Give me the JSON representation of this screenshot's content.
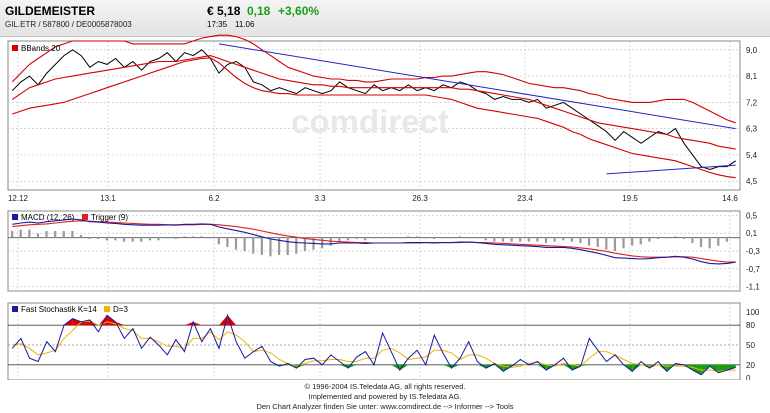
{
  "header": {
    "name": "GILDEMEISTER",
    "ident": "GIL.ETR  /  587800  /  DE0005878003",
    "price": "€ 5,18",
    "change": "0,18",
    "change_pct": "+3,60%",
    "time": "17:35",
    "date": "11.06"
  },
  "watermark": "comdirect",
  "footer": {
    "line1": "© 1996-2004 IS.Teledata AG, all rights reserved.",
    "line2": "Implemented and powered by IS.Teledata AG.",
    "line3": "Den Chart Analyzer finden Sie unter: www.comdirect.de --> Informer --> Tools"
  },
  "colors": {
    "price": "#000000",
    "bbands": "#d40000",
    "trend": "#2424c8",
    "macd": "#1a1aa0",
    "trigger": "#e02020",
    "stoch_k": "#1a1aa0",
    "stoch_d": "#f0b400",
    "overbought": "#e00000",
    "oversold": "#10a010",
    "grid": "#c8c8c8"
  },
  "chart_data": [
    {
      "type": "line",
      "legend": "BBands 20",
      "x_tick_labels": [
        "12.12",
        "13.1",
        "6.2",
        "3.3",
        "26.3",
        "23.4",
        "19.5",
        "14.6"
      ],
      "y_ticks": [
        4.5,
        5.4,
        6.3,
        7.2,
        8.1,
        9.0
      ],
      "y_tick_labels": [
        "4,5",
        "5,4",
        "6,3",
        "7,2",
        "8,1",
        "9,0"
      ],
      "ylim": [
        4.2,
        9.3
      ],
      "series": [
        {
          "role": "price",
          "values": [
            7.6,
            7.9,
            8.1,
            7.8,
            8.2,
            8.5,
            8.8,
            9.0,
            8.8,
            8.4,
            8.6,
            8.5,
            8.7,
            8.4,
            8.6,
            8.3,
            8.6,
            8.7,
            8.9,
            8.6,
            8.9,
            8.8,
            9.0,
            8.7,
            8.2,
            8.5,
            8.6,
            8.4,
            7.9,
            7.8,
            7.6,
            7.7,
            7.6,
            7.5,
            7.7,
            7.6,
            7.5,
            7.6,
            7.9,
            7.7,
            7.6,
            7.5,
            7.8,
            7.6,
            7.7,
            7.6,
            7.8,
            7.6,
            7.7,
            7.6,
            7.8,
            7.7,
            7.9,
            7.8,
            7.6,
            7.5,
            7.3,
            7.4,
            7.3,
            7.3,
            7.2,
            7.3,
            7.0,
            7.1,
            7.2,
            7.0,
            6.8,
            6.6,
            6.4,
            6.2,
            5.9,
            6.2,
            6.0,
            5.8,
            6.0,
            6.2,
            6.1,
            6.3,
            5.8,
            5.4,
            5.0,
            4.9,
            5.0,
            5.0,
            5.2
          ]
        },
        {
          "role": "upper band",
          "values": [
            7.9,
            8.2,
            8.5,
            8.7,
            8.9,
            9.1,
            9.2,
            9.3,
            9.3,
            9.3,
            9.3,
            9.3,
            9.3,
            9.3,
            9.2,
            9.2,
            9.2,
            9.2,
            9.2,
            9.2,
            9.2,
            9.3,
            9.4,
            9.45,
            9.5,
            9.5,
            9.45,
            9.35,
            9.2,
            9.0,
            8.8,
            8.6,
            8.4,
            8.3,
            8.2,
            8.1,
            8.05,
            8.0,
            8.0,
            7.95,
            7.95,
            7.9,
            7.9,
            7.95,
            8.0,
            8.0,
            8.0,
            8.0,
            8.05,
            8.05,
            8.1,
            8.1,
            8.15,
            8.2,
            8.25,
            8.25,
            8.2,
            8.15,
            8.05,
            7.95,
            7.85,
            7.8,
            7.75,
            7.7,
            7.7,
            7.65,
            7.6,
            7.5,
            7.45,
            7.35,
            7.3,
            7.25,
            7.2,
            7.2,
            7.2,
            7.25,
            7.3,
            7.3,
            7.3,
            7.2,
            7.05,
            6.9,
            6.75,
            6.6,
            6.5
          ]
        },
        {
          "role": "middle band",
          "values": [
            7.3,
            7.5,
            7.7,
            7.8,
            7.9,
            8.0,
            8.05,
            8.1,
            8.15,
            8.2,
            8.25,
            8.3,
            8.35,
            8.4,
            8.45,
            8.5,
            8.55,
            8.6,
            8.6,
            8.6,
            8.65,
            8.7,
            8.75,
            8.8,
            8.7,
            8.6,
            8.5,
            8.4,
            8.3,
            8.2,
            8.1,
            8.0,
            7.95,
            7.9,
            7.85,
            7.8,
            7.8,
            7.75,
            7.75,
            7.7,
            7.7,
            7.7,
            7.7,
            7.7,
            7.7,
            7.7,
            7.7,
            7.7,
            7.7,
            7.7,
            7.7,
            7.7,
            7.65,
            7.65,
            7.6,
            7.55,
            7.5,
            7.45,
            7.4,
            7.35,
            7.3,
            7.2,
            7.1,
            7.0,
            6.9,
            6.8,
            6.7,
            6.6,
            6.5,
            6.45,
            6.4,
            6.35,
            6.3,
            6.25,
            6.2,
            6.15,
            6.1,
            6.0,
            5.95,
            5.9,
            5.85,
            5.8,
            5.7,
            5.65,
            5.6
          ]
        },
        {
          "role": "lower band",
          "values": [
            6.8,
            6.9,
            7.0,
            7.05,
            7.1,
            7.15,
            7.2,
            7.3,
            7.4,
            7.5,
            7.6,
            7.7,
            7.8,
            7.9,
            8.0,
            8.1,
            8.2,
            8.3,
            8.4,
            8.5,
            8.6,
            8.65,
            8.7,
            8.72,
            8.55,
            8.3,
            8.05,
            7.85,
            7.7,
            7.6,
            7.55,
            7.5,
            7.5,
            7.45,
            7.45,
            7.45,
            7.45,
            7.45,
            7.45,
            7.45,
            7.45,
            7.45,
            7.45,
            7.45,
            7.45,
            7.45,
            7.45,
            7.45,
            7.45,
            7.4,
            7.35,
            7.3,
            7.2,
            7.1,
            7.0,
            6.95,
            6.9,
            6.85,
            6.8,
            6.75,
            6.7,
            6.65,
            6.55,
            6.45,
            6.35,
            6.2,
            6.1,
            5.95,
            5.85,
            5.75,
            5.65,
            5.55,
            5.45,
            5.4,
            5.35,
            5.3,
            5.25,
            5.2,
            5.1,
            5.0,
            4.9,
            4.8,
            4.72,
            4.66,
            4.62
          ]
        },
        {
          "role": "trend line",
          "points": [
            [
              24,
              9.2
            ],
            [
              84,
              6.3
            ]
          ]
        },
        {
          "role": "trend line",
          "points": [
            [
              69,
              4.75
            ],
            [
              84,
              5.05
            ]
          ]
        }
      ]
    },
    {
      "type": "line",
      "legend": [
        "MACD (12, 26)",
        "Trigger (9)"
      ],
      "y_ticks": [
        0.5,
        0.1,
        -0.3,
        -0.7,
        -1.1
      ],
      "y_tick_labels": [
        "0,5",
        "0,1",
        "-0,3",
        "-0,7",
        "-1,1"
      ],
      "ylim": [
        -1.2,
        0.6
      ],
      "series": [
        {
          "role": "macd",
          "values": [
            0.3,
            0.33,
            0.35,
            0.33,
            0.36,
            0.38,
            0.4,
            0.42,
            0.4,
            0.36,
            0.35,
            0.33,
            0.32,
            0.3,
            0.29,
            0.28,
            0.28,
            0.28,
            0.29,
            0.28,
            0.3,
            0.3,
            0.31,
            0.3,
            0.24,
            0.2,
            0.16,
            0.12,
            0.07,
            0.02,
            -0.03,
            -0.06,
            -0.09,
            -0.11,
            -0.12,
            -0.13,
            -0.14,
            -0.14,
            -0.12,
            -0.12,
            -0.12,
            -0.13,
            -0.12,
            -0.12,
            -0.12,
            -0.12,
            -0.11,
            -0.11,
            -0.11,
            -0.12,
            -0.11,
            -0.11,
            -0.1,
            -0.1,
            -0.11,
            -0.13,
            -0.15,
            -0.16,
            -0.17,
            -0.18,
            -0.19,
            -0.2,
            -0.22,
            -0.22,
            -0.22,
            -0.24,
            -0.27,
            -0.31,
            -0.35,
            -0.4,
            -0.45,
            -0.46,
            -0.47,
            -0.48,
            -0.47,
            -0.45,
            -0.44,
            -0.42,
            -0.44,
            -0.48,
            -0.54,
            -0.58,
            -0.59,
            -0.58,
            -0.55
          ]
        },
        {
          "role": "trigger",
          "values": [
            0.25,
            0.27,
            0.29,
            0.3,
            0.31,
            0.33,
            0.35,
            0.37,
            0.38,
            0.37,
            0.36,
            0.35,
            0.34,
            0.33,
            0.32,
            0.31,
            0.3,
            0.3,
            0.29,
            0.29,
            0.29,
            0.29,
            0.3,
            0.3,
            0.29,
            0.27,
            0.25,
            0.22,
            0.19,
            0.15,
            0.11,
            0.07,
            0.04,
            0.01,
            -0.02,
            -0.04,
            -0.06,
            -0.08,
            -0.09,
            -0.1,
            -0.11,
            -0.11,
            -0.12,
            -0.12,
            -0.12,
            -0.12,
            -0.12,
            -0.12,
            -0.11,
            -0.11,
            -0.11,
            -0.11,
            -0.11,
            -0.1,
            -0.11,
            -0.11,
            -0.12,
            -0.13,
            -0.14,
            -0.15,
            -0.16,
            -0.17,
            -0.18,
            -0.19,
            -0.2,
            -0.21,
            -0.23,
            -0.25,
            -0.28,
            -0.31,
            -0.35,
            -0.38,
            -0.41,
            -0.43,
            -0.44,
            -0.44,
            -0.44,
            -0.43,
            -0.43,
            -0.44,
            -0.47,
            -0.5,
            -0.53,
            -0.55,
            -0.55
          ]
        }
      ]
    },
    {
      "type": "line",
      "legend": [
        "Fast Stochastik K=14",
        "D=3"
      ],
      "y_ticks": [
        100,
        80,
        50,
        20,
        0
      ],
      "y_tick_labels": [
        "100",
        "80",
        "50",
        "20",
        "0"
      ],
      "ylim": [
        0,
        100
      ],
      "series": [
        {
          "role": "k",
          "values": [
            45,
            60,
            30,
            25,
            55,
            40,
            80,
            90,
            85,
            88,
            70,
            95,
            85,
            60,
            75,
            45,
            62,
            50,
            35,
            58,
            40,
            85,
            55,
            75,
            45,
            95,
            55,
            30,
            40,
            48,
            25,
            18,
            22,
            15,
            28,
            30,
            20,
            35,
            25,
            15,
            32,
            40,
            20,
            68,
            40,
            12,
            30,
            42,
            20,
            65,
            38,
            15,
            30,
            55,
            25,
            15,
            22,
            10,
            18,
            28,
            20,
            25,
            12,
            20,
            30,
            12,
            18,
            60,
            42,
            25,
            35,
            20,
            10,
            25,
            15,
            25,
            10,
            22,
            20,
            12,
            5,
            18,
            8,
            12,
            16
          ]
        },
        {
          "role": "d",
          "values": [
            50,
            52,
            45,
            35,
            38,
            42,
            60,
            72,
            85,
            86,
            80,
            85,
            82,
            75,
            72,
            60,
            60,
            55,
            48,
            48,
            45,
            60,
            60,
            70,
            58,
            70,
            65,
            55,
            40,
            42,
            38,
            28,
            22,
            18,
            22,
            26,
            26,
            28,
            28,
            25,
            25,
            30,
            30,
            42,
            45,
            38,
            28,
            30,
            32,
            42,
            42,
            38,
            28,
            35,
            35,
            30,
            22,
            18,
            16,
            18,
            22,
            24,
            20,
            18,
            22,
            20,
            18,
            30,
            40,
            40,
            35,
            28,
            22,
            20,
            18,
            20,
            18,
            18,
            18,
            16,
            12,
            12,
            10,
            12,
            12
          ]
        }
      ]
    }
  ]
}
